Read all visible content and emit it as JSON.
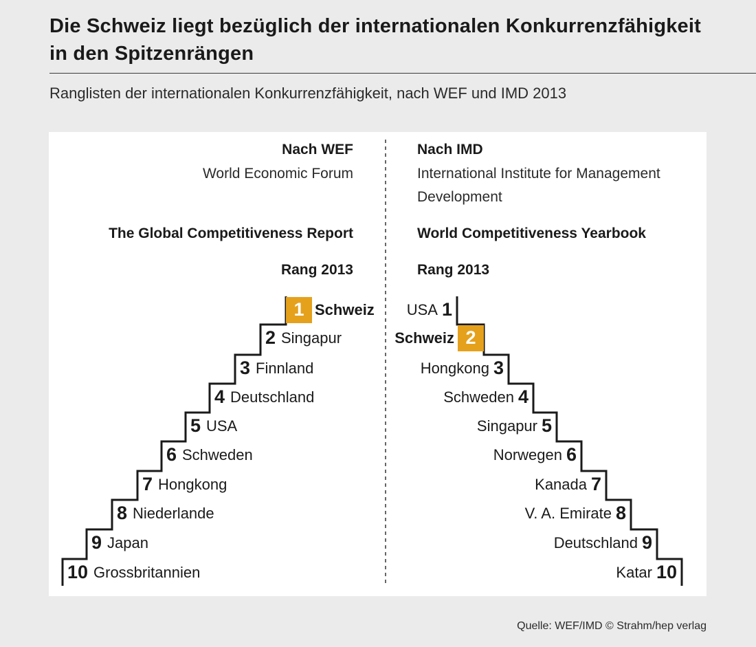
{
  "header": {
    "title_line1": "Die Schweiz liegt bezüglich der internationalen Konkurrenzfähigkeit",
    "title_line2": "in den Spitzenrängen",
    "subtitle": "Ranglisten der internationalen Konkurrenzfähigkeit, nach WEF und IMD 2013"
  },
  "footer": {
    "source": "Quelle: WEF/IMD  © Strahm/hep verlag"
  },
  "colors": {
    "highlight": "#e5a11c",
    "line": "#1a1a1a",
    "panel": "#ffffff",
    "background": "#ebebeb"
  },
  "chart_data": {
    "type": "table",
    "highlight": "Schweiz",
    "panels": [
      {
        "heading": "Nach WEF",
        "org_line1": "World Economic Forum",
        "org_line2": "",
        "report": "The Global Competitiveness Report",
        "rank_label": "Rang 2013",
        "ranks": [
          {
            "rank": 1,
            "country": "Schweiz"
          },
          {
            "rank": 2,
            "country": "Singapur"
          },
          {
            "rank": 3,
            "country": "Finnland"
          },
          {
            "rank": 4,
            "country": "Deutschland"
          },
          {
            "rank": 5,
            "country": "USA"
          },
          {
            "rank": 6,
            "country": "Schweden"
          },
          {
            "rank": 7,
            "country": "Hongkong"
          },
          {
            "rank": 8,
            "country": "Niederlande"
          },
          {
            "rank": 9,
            "country": "Japan"
          },
          {
            "rank": 10,
            "country": "Grossbritannien"
          }
        ]
      },
      {
        "heading": "Nach IMD",
        "org_line1": "International Institute for Management",
        "org_line2": "Development",
        "report": "World Competitiveness Yearbook",
        "rank_label": "Rang 2013",
        "ranks": [
          {
            "rank": 1,
            "country": "USA"
          },
          {
            "rank": 2,
            "country": "Schweiz"
          },
          {
            "rank": 3,
            "country": "Hongkong"
          },
          {
            "rank": 4,
            "country": "Schweden"
          },
          {
            "rank": 5,
            "country": "Singapur"
          },
          {
            "rank": 6,
            "country": "Norwegen"
          },
          {
            "rank": 7,
            "country": "Kanada"
          },
          {
            "rank": 8,
            "country": "V. A. Emirate"
          },
          {
            "rank": 9,
            "country": "Deutschland"
          },
          {
            "rank": 10,
            "country": "Katar"
          }
        ]
      }
    ]
  }
}
